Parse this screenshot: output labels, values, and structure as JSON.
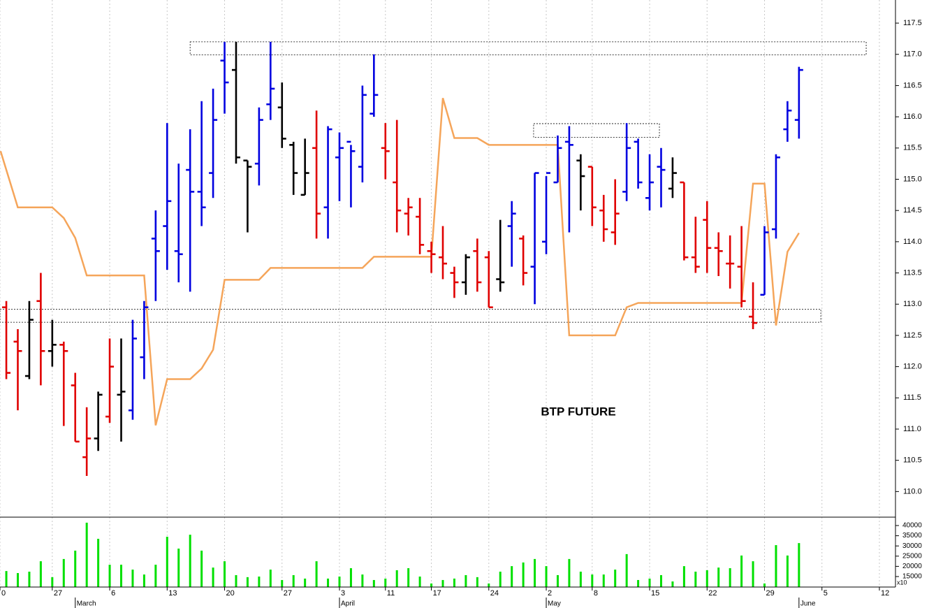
{
  "chart_data": [
    {
      "type": "ohlc",
      "annotation": "BTP FUTURE",
      "open": [
        112.95,
        112.4,
        111.85,
        113.05,
        112.25,
        112.35,
        111.7,
        110.55,
        110.85,
        111.2,
        111.55,
        111.3,
        112.15,
        114.05,
        114.25,
        113.85,
        115.15,
        114.8,
        115.1,
        116.9,
        116.75,
        115.3,
        115.25,
        116.2,
        116.15,
        115.55,
        114.75,
        115.5,
        114.55,
        115.35,
        115.6,
        115.2,
        116.05,
        115.5,
        114.95,
        114.45,
        114.4,
        113.85,
        113.75,
        113.5,
        113.35,
        113.85,
        113.75,
        113.4,
        114.25,
        114.05,
        113.6,
        114.0,
        114.95,
        115.6,
        115.3,
        115.2,
        114.5,
        114.15,
        114.8,
        115.6,
        114.7,
        115.2,
        114.85,
        114.95,
        113.75,
        114.35,
        113.9,
        113.65,
        113.6,
        112.8,
        113.15,
        114.2,
        115.8,
        115.95
      ],
      "high": [
        113.05,
        112.6,
        113.05,
        113.5,
        112.75,
        112.4,
        111.9,
        111.35,
        111.6,
        112.45,
        112.45,
        112.75,
        113.05,
        114.5,
        115.9,
        115.25,
        115.8,
        116.25,
        116.45,
        117.2,
        117.2,
        115.3,
        116.15,
        117.2,
        116.55,
        115.6,
        115.65,
        116.1,
        115.85,
        115.75,
        115.55,
        116.5,
        117.0,
        115.9,
        115.95,
        114.7,
        114.7,
        114.0,
        114.25,
        113.6,
        113.8,
        114.05,
        113.85,
        114.35,
        114.65,
        114.1,
        115.1,
        115.05,
        115.7,
        115.85,
        115.4,
        115.2,
        114.75,
        115.0,
        115.9,
        115.65,
        115.4,
        115.5,
        115.35,
        114.95,
        114.4,
        114.65,
        114.15,
        114.1,
        114.25,
        113.35,
        114.25,
        115.4,
        116.25,
        116.8
      ],
      "low": [
        111.8,
        111.3,
        111.8,
        111.7,
        112.0,
        111.05,
        110.8,
        110.25,
        110.65,
        111.1,
        110.8,
        111.15,
        111.8,
        113.05,
        113.55,
        113.35,
        113.2,
        114.25,
        114.7,
        116.05,
        115.25,
        114.15,
        114.9,
        115.95,
        115.5,
        114.75,
        114.75,
        114.05,
        114.05,
        114.65,
        114.55,
        114.95,
        116.0,
        115.0,
        114.15,
        114.1,
        113.8,
        113.5,
        113.4,
        113.1,
        113.15,
        113.2,
        112.95,
        113.2,
        113.6,
        113.3,
        113.0,
        113.8,
        114.95,
        114.15,
        114.5,
        114.25,
        114.0,
        113.95,
        114.65,
        114.85,
        114.5,
        114.55,
        114.7,
        113.7,
        113.5,
        113.5,
        113.45,
        113.25,
        112.95,
        112.6,
        113.15,
        114.05,
        115.6,
        115.65
      ],
      "close": [
        111.9,
        112.25,
        112.75,
        112.25,
        112.35,
        112.25,
        110.8,
        110.85,
        111.55,
        112.0,
        111.6,
        112.45,
        112.95,
        113.85,
        114.65,
        113.8,
        114.8,
        114.55,
        115.95,
        116.55,
        115.35,
        115.2,
        115.95,
        116.45,
        115.65,
        115.1,
        115.1,
        114.45,
        115.8,
        115.5,
        115.45,
        116.35,
        116.35,
        115.45,
        114.5,
        114.55,
        113.95,
        113.8,
        113.65,
        113.35,
        113.75,
        113.35,
        112.95,
        113.35,
        114.45,
        113.5,
        115.1,
        115.1,
        115.5,
        115.55,
        115.05,
        114.55,
        114.2,
        114.45,
        115.5,
        114.95,
        114.95,
        115.15,
        115.1,
        113.75,
        113.6,
        113.9,
        113.85,
        113.65,
        113.05,
        112.7,
        114.15,
        115.35,
        116.1,
        116.75
      ],
      "colors": [
        "#e00000",
        "#e00000",
        "#000000",
        "#e00000",
        "#000000",
        "#e00000",
        "#e00000",
        "#e00000",
        "#000000",
        "#e00000",
        "#000000",
        "#0000e0",
        "#0000e0",
        "#0000e0",
        "#0000e0",
        "#0000e0",
        "#0000e0",
        "#0000e0",
        "#0000e0",
        "#0000e0",
        "#000000",
        "#000000",
        "#0000e0",
        "#0000e0",
        "#000000",
        "#000000",
        "#000000",
        "#e00000",
        "#0000e0",
        "#0000e0",
        "#0000e0",
        "#0000e0",
        "#0000e0",
        "#e00000",
        "#e00000",
        "#e00000",
        "#e00000",
        "#e00000",
        "#e00000",
        "#e00000",
        "#000000",
        "#e00000",
        "#e00000",
        "#000000",
        "#0000e0",
        "#e00000",
        "#0000e0",
        "#0000e0",
        "#0000e0",
        "#0000e0",
        "#000000",
        "#e00000",
        "#e00000",
        "#e00000",
        "#0000e0",
        "#0000e0",
        "#0000e0",
        "#0000e0",
        "#000000",
        "#e00000",
        "#e00000",
        "#e00000",
        "#e00000",
        "#e00000",
        "#e00000",
        "#e00000",
        "#0000e0",
        "#0000e0",
        "#0000e0",
        "#0000e0"
      ],
      "line": {
        "color": "#f5a55a",
        "x": [
          -0.5,
          1,
          4,
          5,
          6,
          7,
          12,
          13,
          14,
          16,
          17,
          18,
          19,
          22,
          23,
          31,
          32,
          37,
          38,
          39,
          41,
          42,
          48,
          49,
          53,
          54,
          55,
          64,
          65,
          66,
          67,
          68,
          69
        ],
        "values": [
          115.45,
          114.55,
          114.55,
          114.38,
          114.06,
          113.46,
          113.46,
          111.06,
          111.8,
          111.8,
          111.97,
          112.27,
          113.39,
          113.39,
          113.58,
          113.58,
          113.76,
          113.76,
          116.3,
          115.66,
          115.66,
          115.55,
          115.55,
          112.5,
          112.5,
          112.95,
          113.02,
          113.02,
          114.93,
          114.93,
          112.66,
          113.84,
          114.14
        ]
      },
      "zones": [
        {
          "x": [
            16,
            74.85
          ],
          "y": [
            116.99,
            117.2
          ]
        },
        {
          "x": [
            45.9,
            56.85
          ],
          "y": [
            115.67,
            115.89
          ]
        },
        {
          "x": [
            -0.55,
            70.9
          ],
          "y": [
            112.71,
            112.92
          ]
        }
      ],
      "xlim": [
        -0.55,
        77.4
      ],
      "ylim": [
        109.59,
        117.87
      ],
      "yticks": [
        {
          "value": 110,
          "label": "110.0"
        },
        {
          "value": 110.5,
          "label": "110.5"
        },
        {
          "value": 111,
          "label": "111.0"
        },
        {
          "value": 111.5,
          "label": "111.5"
        },
        {
          "value": 112,
          "label": "112.0"
        },
        {
          "value": 112.5,
          "label": "112.5"
        },
        {
          "value": 113,
          "label": "113.0"
        },
        {
          "value": 113.5,
          "label": "113.5"
        },
        {
          "value": 114,
          "label": "114.0"
        },
        {
          "value": 114.5,
          "label": "114.5"
        },
        {
          "value": 115,
          "label": "115.0"
        },
        {
          "value": 115.5,
          "label": "115.5"
        },
        {
          "value": 116,
          "label": "116.0"
        },
        {
          "value": 116.5,
          "label": "116.5"
        },
        {
          "value": 117,
          "label": "117.0"
        },
        {
          "value": 117.5,
          "label": "117.5"
        }
      ],
      "xticks": [
        {
          "value": -0.55,
          "label": "0"
        },
        {
          "value": 4,
          "label": "27"
        },
        {
          "value": 9,
          "label": "6"
        },
        {
          "value": 14,
          "label": "13"
        },
        {
          "value": 19,
          "label": "20"
        },
        {
          "value": 24,
          "label": "27"
        },
        {
          "value": 29,
          "label": "3"
        },
        {
          "value": 33,
          "label": "11"
        },
        {
          "value": 37,
          "label": "17"
        },
        {
          "value": 42,
          "label": "24"
        },
        {
          "value": 47,
          "label": "2"
        },
        {
          "value": 51,
          "label": "8"
        },
        {
          "value": 56,
          "label": "15"
        },
        {
          "value": 61,
          "label": "22"
        },
        {
          "value": 66,
          "label": "29"
        },
        {
          "value": 71,
          "label": "5"
        },
        {
          "value": 76,
          "label": "12"
        }
      ],
      "month_ticks": [
        {
          "value": 6,
          "label": "March"
        },
        {
          "value": 29,
          "label": "April"
        },
        {
          "value": 47,
          "label": "May"
        },
        {
          "value": 69,
          "label": "June"
        }
      ],
      "grid": true
    },
    {
      "type": "bar",
      "color": "#00e000",
      "values": [
        17700,
        16700,
        17400,
        22500,
        14700,
        23600,
        27700,
        41400,
        33500,
        20800,
        20800,
        18400,
        16000,
        20800,
        34500,
        28700,
        35500,
        27700,
        19400,
        22500,
        15700,
        14700,
        15000,
        18400,
        13300,
        15700,
        14000,
        22500,
        14000,
        15000,
        19100,
        16000,
        13300,
        14000,
        18100,
        19100,
        15000,
        11600,
        13300,
        14000,
        15700,
        14700,
        11600,
        17400,
        20100,
        21900,
        23600,
        20100,
        15700,
        23600,
        17400,
        16000,
        16000,
        18400,
        26000,
        13300,
        14000,
        15700,
        12600,
        20100,
        17400,
        18100,
        19400,
        19100,
        25300,
        22500,
        11600,
        30400,
        25300,
        31400
      ],
      "ylim": [
        9860,
        44110
      ],
      "yticks": [
        15000,
        20000,
        25000,
        30000,
        35000,
        40000
      ],
      "axis_note": "x10"
    }
  ]
}
